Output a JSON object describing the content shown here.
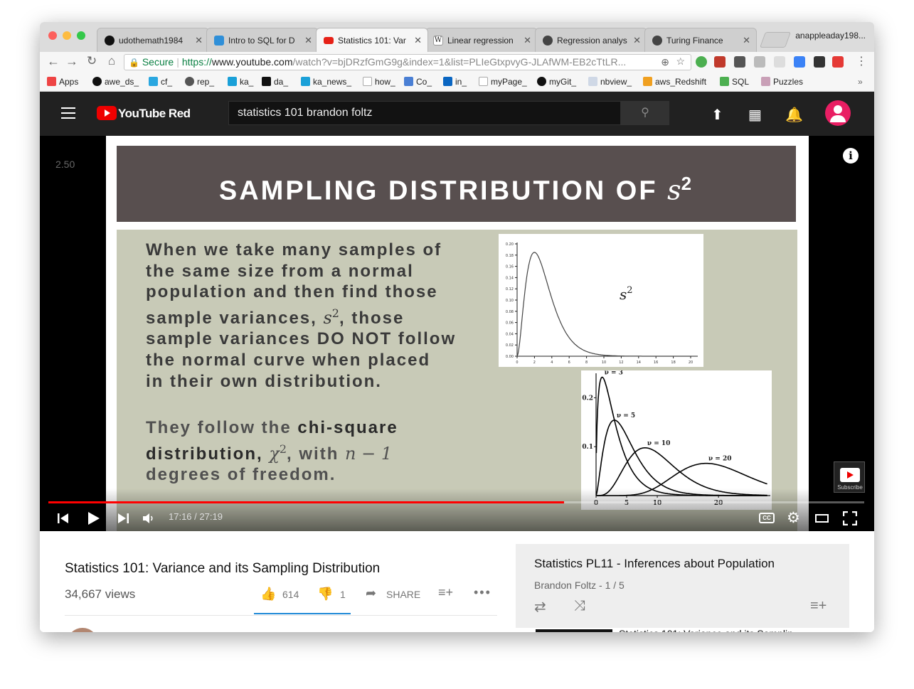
{
  "browser": {
    "tabs": [
      {
        "title": "udothemath1984",
        "favicon": "github-icon",
        "color": "#111111"
      },
      {
        "title": "Intro to SQL for D",
        "favicon": "shield-icon",
        "color": "#2f8fd8"
      },
      {
        "title": "Statistics 101: Var",
        "favicon": "youtube-icon",
        "color": "#e62117",
        "active": true
      },
      {
        "title": "Linear regression",
        "favicon": "wikipedia-icon",
        "color": "#ffffff"
      },
      {
        "title": "Regression analys",
        "favicon": "globe-icon",
        "color": "#444444"
      },
      {
        "title": "Turing Finance",
        "favicon": "globe-icon",
        "color": "#444444"
      }
    ],
    "profile": "anappleaday198...",
    "url": {
      "secure_label": "Secure",
      "scheme": "https://",
      "host": "www.youtube.com",
      "path": "/watch?v=bjDRzfGmG9g&index=1&list=PLIeGtxpvyG-JLAfWM-EB2cTtLR..."
    },
    "bookmarks": [
      {
        "label": "Apps",
        "icon": "apps-grid-icon",
        "color": "#e44"
      },
      {
        "label": "awe_ds_",
        "icon": "github-icon",
        "color": "#111"
      },
      {
        "label": "cf_",
        "icon": "vf-icon",
        "color": "#2aa7e0"
      },
      {
        "label": "rep_",
        "icon": "circle-icon",
        "color": "#555"
      },
      {
        "label": "ka_",
        "icon": "k-icon",
        "color": "#1aa0d8"
      },
      {
        "label": "da_",
        "icon": "t-icon",
        "color": "#111"
      },
      {
        "label": "ka_news_",
        "icon": "k-icon",
        "color": "#1aa0d8"
      },
      {
        "label": "how_",
        "icon": "page-icon",
        "color": "#bbb"
      },
      {
        "label": "Co_",
        "icon": "infinity-icon",
        "color": "#4a7fd4"
      },
      {
        "label": "in_",
        "icon": "linkedin-icon",
        "color": "#0a66c2"
      },
      {
        "label": "myPage_",
        "icon": "page-icon",
        "color": "#bbb"
      },
      {
        "label": "myGit_",
        "icon": "github-icon",
        "color": "#111"
      },
      {
        "label": "nbview_",
        "icon": "nb-icon",
        "color": "#cfd8e6"
      },
      {
        "label": "aws_Redshift",
        "icon": "aws-box-icon",
        "color": "#f0a020"
      },
      {
        "label": "SQL",
        "icon": "w3-icon",
        "color": "#4caf50"
      },
      {
        "label": "Puzzles",
        "icon": "folder-icon",
        "color": "#c9a0b7"
      }
    ]
  },
  "youtube": {
    "logo_text": "YouTube Red",
    "search_value": "statistics 101 brandon foltz",
    "player": {
      "rate_label": "2.50",
      "info_glyph": "i",
      "subscribe_label": "Subscribe",
      "time_current": "17:16",
      "time_total": "27:19",
      "progress_fraction": 0.632,
      "cc_label": "CC",
      "accent": "#ff0000"
    },
    "slide": {
      "title": "SAMPLING DISTRIBUTION OF ",
      "title_math": "s",
      "title_sup": "2",
      "para1_lines": [
        "When we take many samples of",
        "the same size from a normal",
        "population and then find those"
      ],
      "para1_line4_a": "sample variances, ",
      "para1_line4_math": "s",
      "para1_line4_sup": "2",
      "para1_line4_b": ", those",
      "para1_line5": "sample variances DO NOT follow",
      "para1_line6": "the normal curve when placed",
      "para1_line7": "in their own distribution.",
      "para2_line1_a": "They follow the ",
      "para2_line1_bold": "chi-square",
      "para2_line2_a": "distribution, ",
      "para2_line2_math": "χ",
      "para2_line2_sup": "2",
      "para2_line2_b": ", with ",
      "para2_line2_math2": "n − 1",
      "para2_line3": "degrees of freedom.",
      "plot1_label": "s",
      "plot1_label_sup": "2",
      "plot1_yticks": [
        "0.00",
        "0.02",
        "0.04",
        "0.06",
        "0.08",
        "0.10",
        "0.12",
        "0.14",
        "0.16",
        "0.18",
        "0.20"
      ],
      "plot1_xticks": [
        "0",
        "2",
        "4",
        "6",
        "8",
        "10",
        "12",
        "14",
        "16",
        "18",
        "20"
      ],
      "plot2_yticks": [
        "0.1",
        "0.2"
      ],
      "plot2_xticks": [
        "0",
        "5",
        "10",
        "20"
      ],
      "plot2_curve_labels": [
        "ν = 3",
        "ν = 5",
        "ν = 10",
        "ν = 20"
      ]
    },
    "video_title": "Statistics 101: Variance and its Sampling Distribution",
    "views": "34,667 views",
    "likes": "614",
    "dislikes": "1",
    "share_label": "SHARE",
    "playlist": {
      "title": "Statistics PL11 - Inferences about Population",
      "meta": "Brandon Foltz - 1 / 5",
      "first_item": "Statistics 101: Variance and its Samplin..."
    }
  }
}
